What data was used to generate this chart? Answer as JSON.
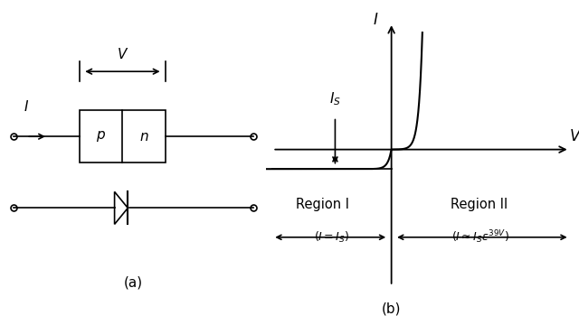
{
  "bg_color": "#ffffff",
  "fig_width": 6.4,
  "fig_height": 3.6,
  "dpi": 100,
  "lw": 1.2,
  "panel_a_label": "(a)",
  "panel_b_label": "(b)",
  "p_text": "$p$",
  "n_text": "$n$",
  "V_label": "$V$",
  "I_label": "$I$",
  "Is_label": "$I_S$",
  "Vaxis_label": "$V$",
  "Iaxis_label": "$I$",
  "region1_label": "Region I",
  "region2_label": "Region II",
  "eq1": "$(I = I_S)$",
  "eq2": "$(I \\approx I_S\\varepsilon^{39V})$"
}
